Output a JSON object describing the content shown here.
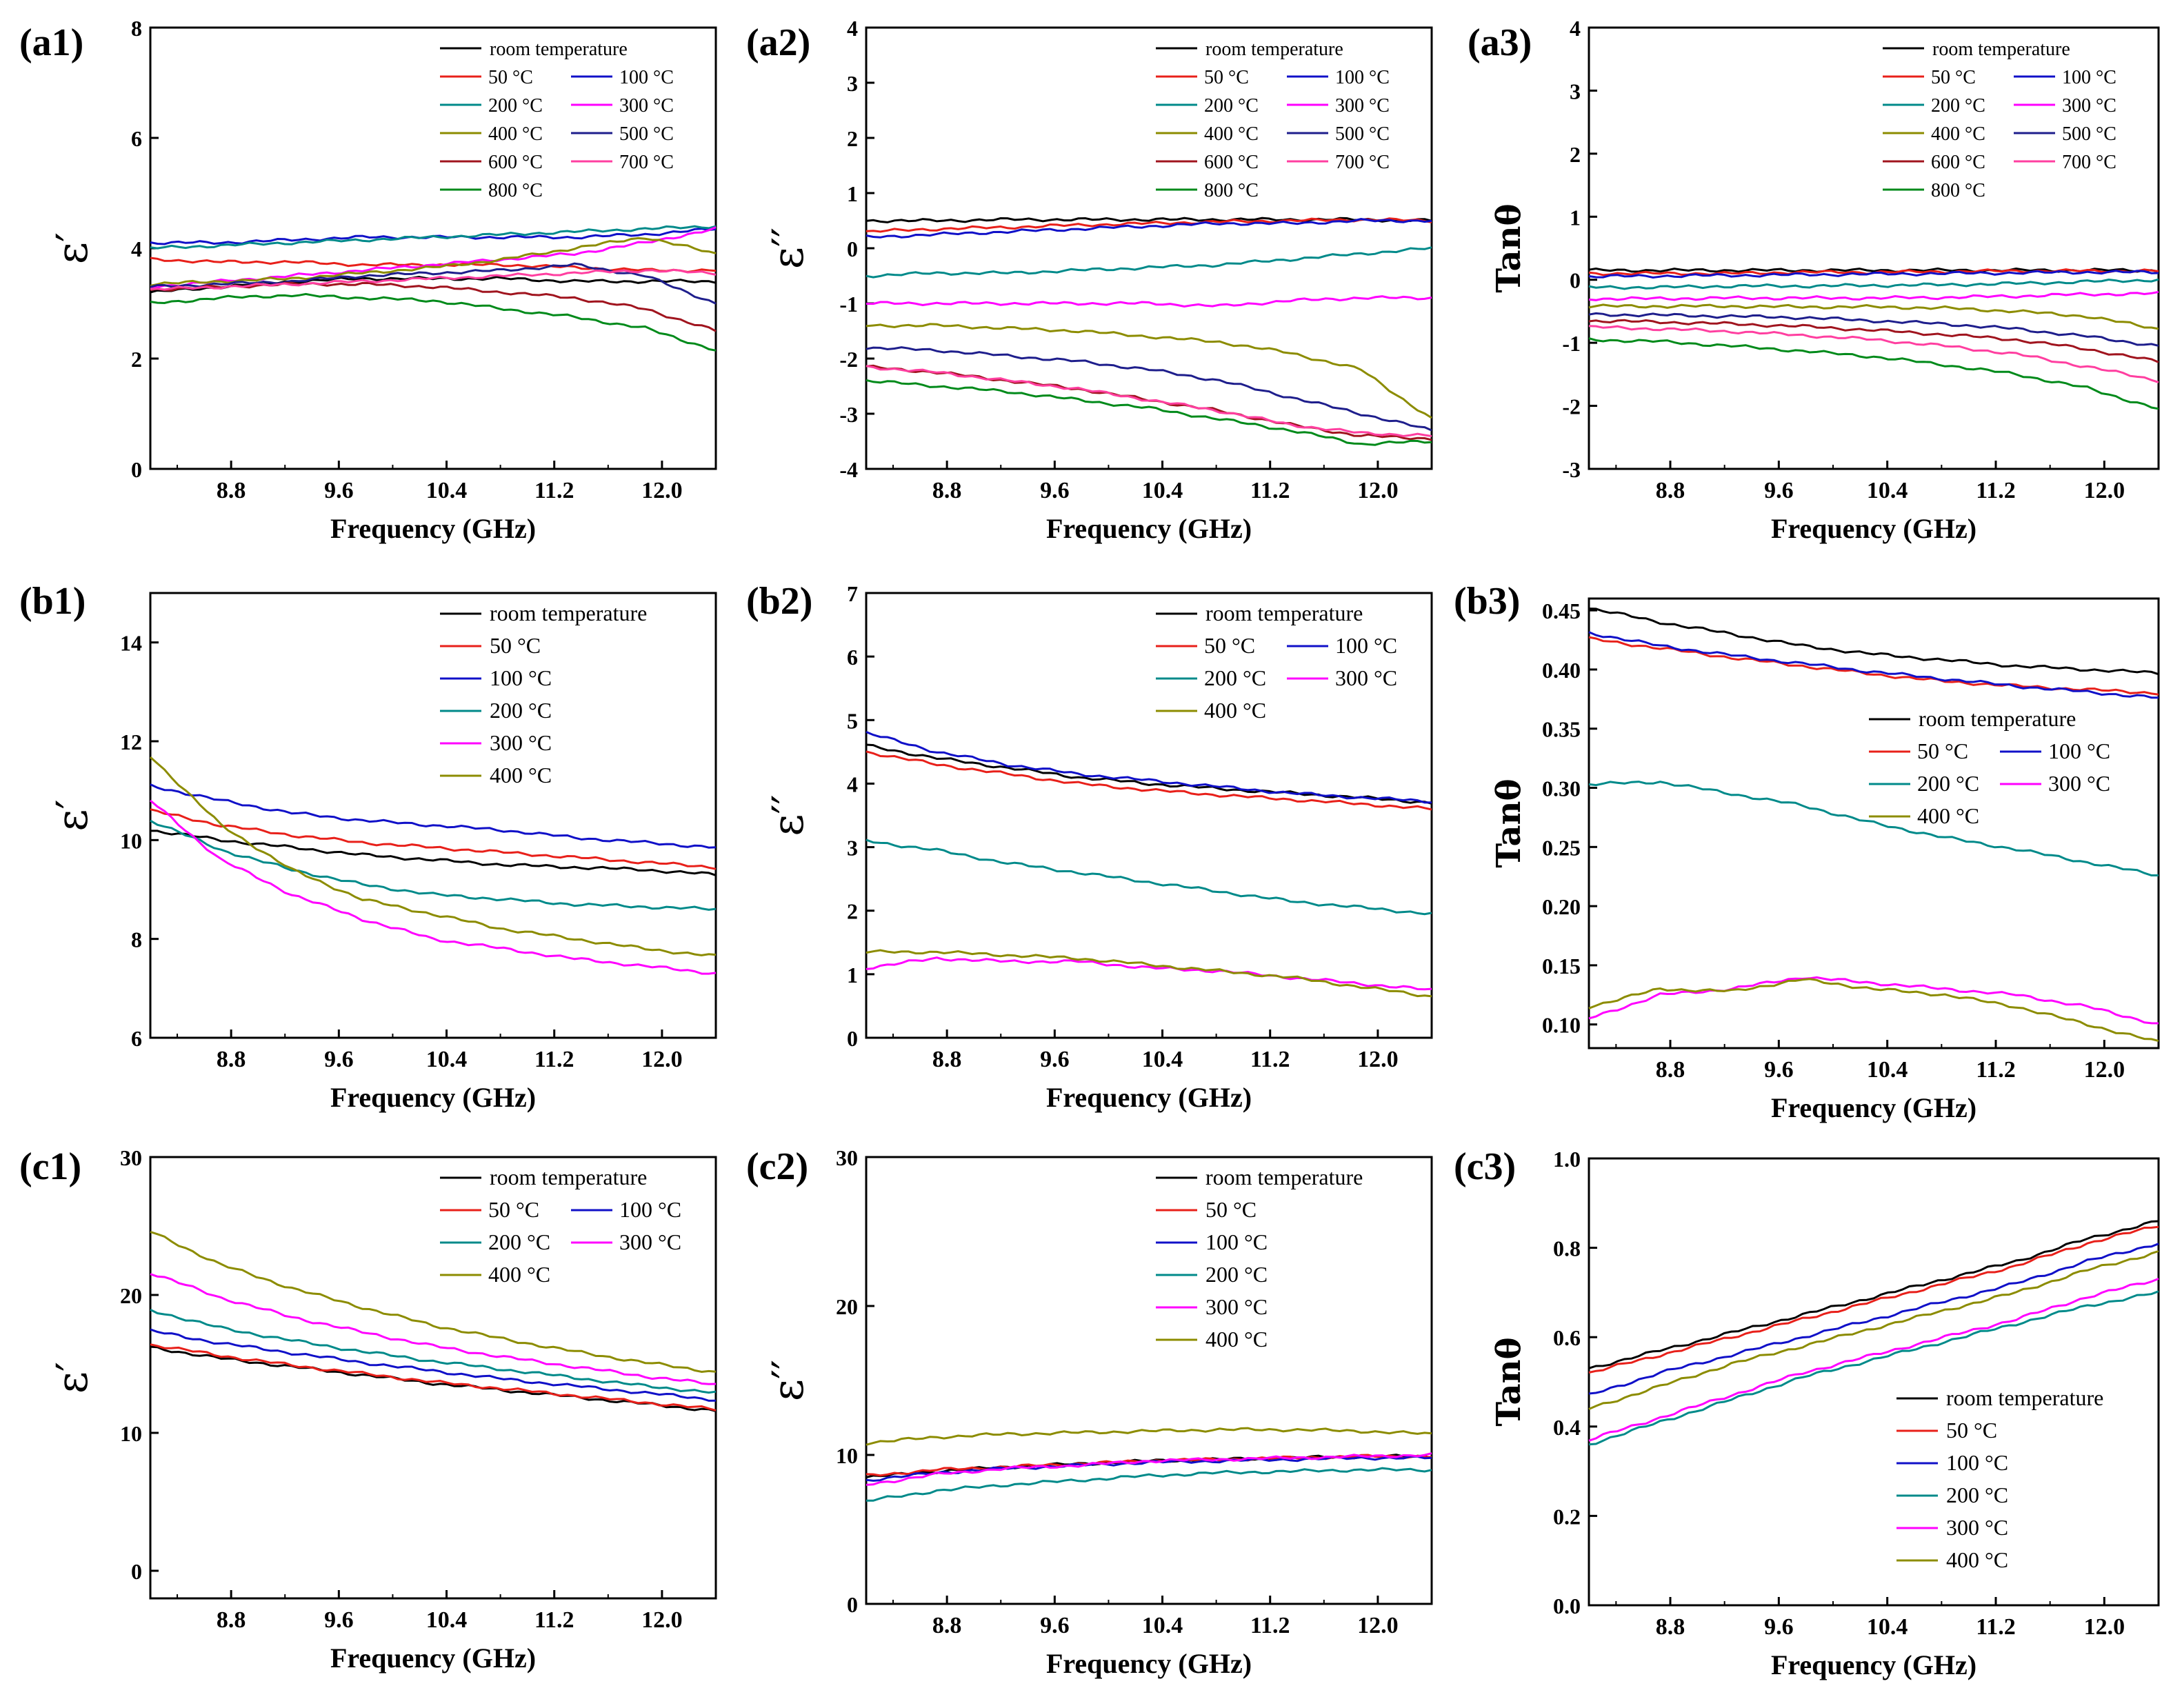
{
  "figure": {
    "xlabel": "Frequency (GHz)",
    "x_range": [
      8.2,
      12.4
    ],
    "x_ticks": [
      "8.8",
      "9.6",
      "10.4",
      "11.2",
      "12.0"
    ]
  },
  "colors": {
    "room temperature": "#000000",
    "50 °C": "#e8201a",
    "100 °C": "#1010c8",
    "200 °C": "#008a8a",
    "300 °C": "#ff00ff",
    "400 °C": "#8c8c00",
    "500 °C": "#1e1e8c",
    "600 °C": "#a0141e",
    "700 °C": "#ff3fa0",
    "800 °C": "#008a1a"
  },
  "chart_data": [
    {
      "panel": "(a1)",
      "type": "line",
      "ylabel": "ε′",
      "ylim": [
        0,
        8
      ],
      "yticks": [
        "0",
        "2",
        "4",
        "6",
        "8"
      ],
      "legend": "top-right",
      "series": [
        {
          "name": "room temperature",
          "values": [
            3.2,
            3.3,
            3.4,
            3.45,
            3.45,
            3.45,
            3.4,
            3.4,
            3.4
          ]
        },
        {
          "name": "50 °C",
          "values": [
            3.8,
            3.75,
            3.75,
            3.7,
            3.7,
            3.7,
            3.65,
            3.6,
            3.6
          ]
        },
        {
          "name": "100 °C",
          "values": [
            4.1,
            4.1,
            4.15,
            4.2,
            4.2,
            4.2,
            4.2,
            4.25,
            4.35
          ]
        },
        {
          "name": "200 °C",
          "values": [
            4.0,
            4.05,
            4.1,
            4.15,
            4.2,
            4.25,
            4.3,
            4.35,
            4.4
          ]
        },
        {
          "name": "300 °C",
          "values": [
            3.3,
            3.4,
            3.5,
            3.6,
            3.7,
            3.8,
            3.9,
            4.1,
            4.35
          ]
        },
        {
          "name": "400 °C",
          "values": [
            3.35,
            3.4,
            3.45,
            3.55,
            3.65,
            3.8,
            4.0,
            4.2,
            3.9
          ]
        },
        {
          "name": "500 °C",
          "values": [
            3.3,
            3.35,
            3.4,
            3.5,
            3.55,
            3.6,
            3.7,
            3.5,
            3.0
          ]
        },
        {
          "name": "600 °C",
          "values": [
            3.25,
            3.3,
            3.35,
            3.35,
            3.3,
            3.2,
            3.1,
            2.9,
            2.5
          ]
        },
        {
          "name": "700 °C",
          "values": [
            3.25,
            3.3,
            3.35,
            3.4,
            3.45,
            3.5,
            3.55,
            3.6,
            3.55
          ]
        },
        {
          "name": "800 °C",
          "values": [
            3.0,
            3.1,
            3.15,
            3.1,
            3.05,
            2.9,
            2.75,
            2.55,
            2.15
          ]
        }
      ]
    },
    {
      "panel": "(a2)",
      "type": "line",
      "ylabel": "ε′′",
      "ylim": [
        -4,
        4
      ],
      "yticks": [
        "-4",
        "-3",
        "-2",
        "-1",
        "0",
        "1",
        "2",
        "3",
        "4"
      ],
      "legend": "top-right",
      "series": [
        {
          "name": "room temperature",
          "values": [
            0.5,
            0.5,
            0.52,
            0.52,
            0.52,
            0.52,
            0.52,
            0.52,
            0.5
          ]
        },
        {
          "name": "50 °C",
          "values": [
            0.3,
            0.35,
            0.38,
            0.42,
            0.45,
            0.48,
            0.5,
            0.52,
            0.5
          ]
        },
        {
          "name": "100 °C",
          "values": [
            0.2,
            0.25,
            0.3,
            0.35,
            0.4,
            0.45,
            0.45,
            0.5,
            0.5
          ]
        },
        {
          "name": "200 °C",
          "values": [
            -0.5,
            -0.45,
            -0.45,
            -0.4,
            -0.35,
            -0.3,
            -0.2,
            -0.1,
            0.0
          ]
        },
        {
          "name": "300 °C",
          "values": [
            -1.0,
            -1.0,
            -1.0,
            -1.0,
            -1.0,
            -1.05,
            -0.95,
            -0.9,
            -0.9
          ]
        },
        {
          "name": "400 °C",
          "values": [
            -1.4,
            -1.4,
            -1.45,
            -1.5,
            -1.6,
            -1.7,
            -1.9,
            -2.2,
            -3.1
          ]
        },
        {
          "name": "500 °C",
          "values": [
            -1.8,
            -1.85,
            -1.95,
            -2.05,
            -2.2,
            -2.4,
            -2.7,
            -3.0,
            -3.3
          ]
        },
        {
          "name": "600 °C",
          "values": [
            -2.15,
            -2.25,
            -2.4,
            -2.55,
            -2.75,
            -2.95,
            -3.2,
            -3.4,
            -3.45
          ]
        },
        {
          "name": "700 °C",
          "values": [
            -2.15,
            -2.25,
            -2.4,
            -2.55,
            -2.75,
            -2.95,
            -3.2,
            -3.35,
            -3.4
          ]
        },
        {
          "name": "800 °C",
          "values": [
            -2.4,
            -2.5,
            -2.6,
            -2.75,
            -2.9,
            -3.1,
            -3.3,
            -3.55,
            -3.5
          ]
        }
      ]
    },
    {
      "panel": "(a3)",
      "type": "line",
      "ylabel": "Tanθ",
      "ylim": [
        -3,
        4
      ],
      "yticks": [
        "-3",
        "-2",
        "-1",
        "0",
        "1",
        "2",
        "3",
        "4"
      ],
      "legend": "top-right",
      "series": [
        {
          "name": "room temperature",
          "values": [
            0.15,
            0.15,
            0.15,
            0.15,
            0.15,
            0.15,
            0.15,
            0.15,
            0.15
          ]
        },
        {
          "name": "50 °C",
          "values": [
            0.1,
            0.1,
            0.1,
            0.12,
            0.12,
            0.13,
            0.14,
            0.14,
            0.14
          ]
        },
        {
          "name": "100 °C",
          "values": [
            0.05,
            0.06,
            0.07,
            0.08,
            0.09,
            0.1,
            0.11,
            0.12,
            0.12
          ]
        },
        {
          "name": "200 °C",
          "values": [
            -0.12,
            -0.12,
            -0.1,
            -0.1,
            -0.09,
            -0.08,
            -0.06,
            -0.03,
            0.0
          ]
        },
        {
          "name": "300 °C",
          "values": [
            -0.3,
            -0.3,
            -0.29,
            -0.29,
            -0.29,
            -0.28,
            -0.26,
            -0.23,
            -0.22
          ]
        },
        {
          "name": "400 °C",
          "values": [
            -0.42,
            -0.42,
            -0.42,
            -0.43,
            -0.43,
            -0.45,
            -0.5,
            -0.58,
            -0.78
          ]
        },
        {
          "name": "500 °C",
          "values": [
            -0.55,
            -0.56,
            -0.58,
            -0.6,
            -0.65,
            -0.7,
            -0.78,
            -0.9,
            -1.05
          ]
        },
        {
          "name": "600 °C",
          "values": [
            -0.65,
            -0.67,
            -0.7,
            -0.74,
            -0.8,
            -0.87,
            -0.95,
            -1.1,
            -1.3
          ]
        },
        {
          "name": "700 °C",
          "values": [
            -0.75,
            -0.78,
            -0.82,
            -0.88,
            -0.95,
            -1.05,
            -1.18,
            -1.38,
            -1.6
          ]
        },
        {
          "name": "800 °C",
          "values": [
            -0.95,
            -0.98,
            -1.05,
            -1.13,
            -1.22,
            -1.35,
            -1.5,
            -1.72,
            -2.05
          ]
        }
      ]
    },
    {
      "panel": "(b1)",
      "type": "line",
      "ylabel": "ε′",
      "ylim": [
        6,
        15
      ],
      "yticks": [
        "6",
        "8",
        "10",
        "12",
        "14"
      ],
      "legend": "top-right",
      "series": [
        {
          "name": "room temperature",
          "values": [
            10.2,
            10.0,
            9.85,
            9.7,
            9.6,
            9.5,
            9.45,
            9.4,
            9.3
          ]
        },
        {
          "name": "50 °C",
          "values": [
            10.6,
            10.3,
            10.1,
            9.95,
            9.85,
            9.75,
            9.65,
            9.55,
            9.45
          ]
        },
        {
          "name": "100 °C",
          "values": [
            11.1,
            10.8,
            10.55,
            10.4,
            10.3,
            10.2,
            10.05,
            9.95,
            9.85
          ]
        },
        {
          "name": "200 °C",
          "values": [
            10.4,
            9.8,
            9.4,
            9.1,
            8.9,
            8.8,
            8.7,
            8.65,
            8.6
          ]
        },
        {
          "name": "300 °C",
          "values": [
            10.8,
            9.6,
            8.9,
            8.4,
            8.0,
            7.8,
            7.6,
            7.45,
            7.3
          ]
        },
        {
          "name": "400 °C",
          "values": [
            11.7,
            10.3,
            9.4,
            8.8,
            8.5,
            8.2,
            8.0,
            7.8,
            7.65
          ]
        }
      ]
    },
    {
      "panel": "(b2)",
      "type": "line",
      "ylabel": "ε′′",
      "ylim": [
        0,
        7
      ],
      "yticks": [
        "0",
        "1",
        "2",
        "3",
        "4",
        "5",
        "6",
        "7"
      ],
      "legend": "top-right",
      "series": [
        {
          "name": "room temperature",
          "values": [
            4.6,
            4.4,
            4.25,
            4.1,
            4.0,
            3.92,
            3.85,
            3.78,
            3.7
          ]
        },
        {
          "name": "50 °C",
          "values": [
            4.5,
            4.3,
            4.15,
            4.0,
            3.9,
            3.82,
            3.75,
            3.68,
            3.6
          ]
        },
        {
          "name": "100 °C",
          "values": [
            4.8,
            4.5,
            4.3,
            4.15,
            4.05,
            3.95,
            3.85,
            3.78,
            3.72
          ]
        },
        {
          "name": "200 °C",
          "values": [
            3.1,
            2.95,
            2.75,
            2.6,
            2.45,
            2.3,
            2.15,
            2.05,
            1.95
          ]
        },
        {
          "name": "300 °C",
          "values": [
            1.1,
            1.25,
            1.2,
            1.2,
            1.1,
            1.05,
            0.95,
            0.85,
            0.75
          ]
        },
        {
          "name": "400 °C",
          "values": [
            1.35,
            1.35,
            1.3,
            1.25,
            1.15,
            1.05,
            0.95,
            0.8,
            0.65
          ]
        }
      ]
    },
    {
      "panel": "(b3)",
      "type": "line",
      "ylabel": "Tanθ",
      "ylim": [
        0.08,
        0.46
      ],
      "yticks": [
        "0.10",
        "0.15",
        "0.20",
        "0.25",
        "0.30",
        "0.35",
        "0.40",
        "0.45"
      ],
      "legend": "middle-right",
      "series": [
        {
          "name": "room temperature",
          "values": [
            0.452,
            0.44,
            0.43,
            0.42,
            0.413,
            0.408,
            0.403,
            0.4,
            0.397
          ]
        },
        {
          "name": "50 °C",
          "values": [
            0.426,
            0.418,
            0.41,
            0.403,
            0.396,
            0.39,
            0.386,
            0.383,
            0.38
          ]
        },
        {
          "name": "100 °C",
          "values": [
            0.431,
            0.42,
            0.412,
            0.405,
            0.398,
            0.392,
            0.386,
            0.381,
            0.376
          ]
        },
        {
          "name": "200 °C",
          "values": [
            0.303,
            0.305,
            0.295,
            0.285,
            0.27,
            0.258,
            0.248,
            0.237,
            0.226
          ]
        },
        {
          "name": "300 °C",
          "values": [
            0.105,
            0.125,
            0.13,
            0.14,
            0.135,
            0.13,
            0.125,
            0.115,
            0.1
          ]
        },
        {
          "name": "400 °C",
          "values": [
            0.115,
            0.13,
            0.128,
            0.138,
            0.13,
            0.125,
            0.115,
            0.1,
            0.085
          ]
        }
      ]
    },
    {
      "panel": "(c1)",
      "type": "line",
      "ylabel": "ε′",
      "ylim": [
        -2,
        30
      ],
      "yticks": [
        "0",
        "10",
        "20",
        "30"
      ],
      "legend": "top-right",
      "series": [
        {
          "name": "room temperature",
          "values": [
            16.2,
            15.4,
            14.8,
            14.2,
            13.6,
            13.1,
            12.6,
            12.1,
            11.6
          ]
        },
        {
          "name": "50 °C",
          "values": [
            16.4,
            15.6,
            14.9,
            14.3,
            13.7,
            13.2,
            12.7,
            12.2,
            11.7
          ]
        },
        {
          "name": "100 °C",
          "values": [
            17.4,
            16.5,
            15.8,
            15.1,
            14.5,
            13.9,
            13.4,
            12.9,
            12.4
          ]
        },
        {
          "name": "200 °C",
          "values": [
            18.9,
            17.6,
            16.7,
            15.9,
            15.2,
            14.6,
            14.0,
            13.4,
            12.9
          ]
        },
        {
          "name": "300 °C",
          "values": [
            21.6,
            19.8,
            18.4,
            17.3,
            16.3,
            15.5,
            14.8,
            14.1,
            13.5
          ]
        },
        {
          "name": "400 °C",
          "values": [
            24.6,
            22.2,
            20.5,
            19.1,
            17.8,
            16.8,
            15.9,
            15.1,
            14.4
          ]
        }
      ]
    },
    {
      "panel": "(c2)",
      "type": "line",
      "ylabel": "ε′′",
      "ylim": [
        0,
        30
      ],
      "yticks": [
        "0",
        "10",
        "20",
        "30"
      ],
      "legend": "top-right",
      "series": [
        {
          "name": "room temperature",
          "values": [
            8.5,
            8.9,
            9.2,
            9.4,
            9.6,
            9.7,
            9.8,
            9.9,
            9.9
          ]
        },
        {
          "name": "50 °C",
          "values": [
            8.6,
            9.0,
            9.2,
            9.4,
            9.6,
            9.7,
            9.8,
            9.9,
            9.9
          ]
        },
        {
          "name": "100 °C",
          "values": [
            8.3,
            8.8,
            9.1,
            9.3,
            9.5,
            9.6,
            9.7,
            9.8,
            9.8
          ]
        },
        {
          "name": "200 °C",
          "values": [
            6.9,
            7.6,
            8.0,
            8.3,
            8.6,
            8.8,
            8.9,
            9.0,
            9.0
          ]
        },
        {
          "name": "300 °C",
          "values": [
            8.0,
            8.7,
            9.1,
            9.3,
            9.6,
            9.7,
            9.8,
            9.9,
            10.0
          ]
        },
        {
          "name": "400 °C",
          "values": [
            10.8,
            11.2,
            11.4,
            11.5,
            11.6,
            11.7,
            11.7,
            11.6,
            11.4
          ]
        }
      ]
    },
    {
      "panel": "(c3)",
      "type": "line",
      "ylabel": "Tanθ",
      "ylim": [
        0,
        1
      ],
      "yticks": [
        "0.0",
        "0.2",
        "0.4",
        "0.6",
        "0.8",
        "1.0"
      ],
      "legend": "bottom-right",
      "series": [
        {
          "name": "room temperature",
          "values": [
            0.53,
            0.57,
            0.61,
            0.65,
            0.69,
            0.73,
            0.77,
            0.82,
            0.86
          ]
        },
        {
          "name": "50 °C",
          "values": [
            0.52,
            0.56,
            0.6,
            0.64,
            0.68,
            0.72,
            0.76,
            0.81,
            0.85
          ]
        },
        {
          "name": "100 °C",
          "values": [
            0.47,
            0.52,
            0.56,
            0.6,
            0.64,
            0.68,
            0.72,
            0.77,
            0.81
          ]
        },
        {
          "name": "200 °C",
          "values": [
            0.36,
            0.41,
            0.46,
            0.51,
            0.55,
            0.59,
            0.63,
            0.67,
            0.7
          ]
        },
        {
          "name": "300 °C",
          "values": [
            0.37,
            0.42,
            0.47,
            0.52,
            0.56,
            0.6,
            0.64,
            0.69,
            0.73
          ]
        },
        {
          "name": "400 °C",
          "values": [
            0.44,
            0.49,
            0.54,
            0.58,
            0.62,
            0.66,
            0.7,
            0.75,
            0.79
          ]
        }
      ]
    }
  ]
}
